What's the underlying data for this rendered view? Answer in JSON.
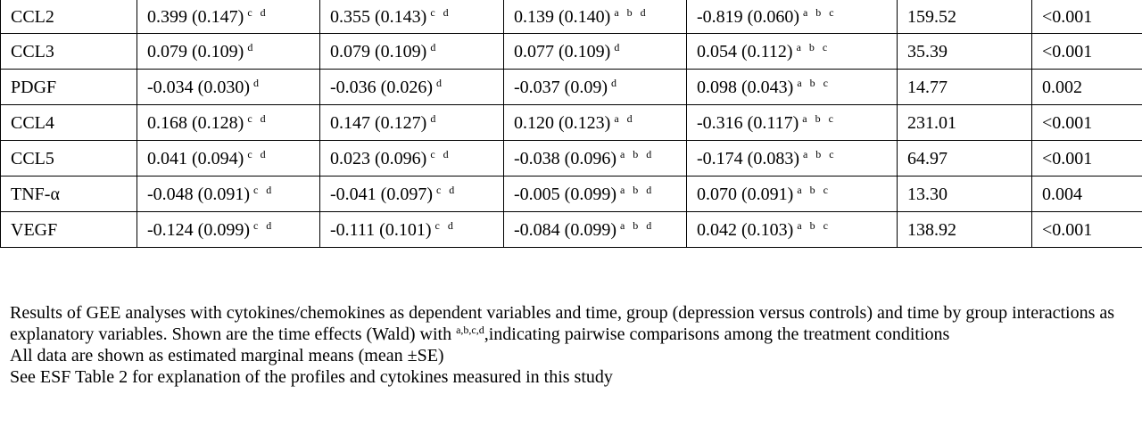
{
  "table": {
    "rows": [
      {
        "name": "CCL2",
        "cells": [
          {
            "value": "0.399 (0.147)",
            "sup": "c d"
          },
          {
            "value": "0.355 (0.143)",
            "sup": "c d"
          },
          {
            "value": "0.139 (0.140)",
            "sup": "a b d"
          },
          {
            "value": "-0.819 (0.060)",
            "sup": "a b c"
          }
        ],
        "wald": "159.52",
        "p": "<0.001"
      },
      {
        "name": "CCL3",
        "cells": [
          {
            "value": "0.079 (0.109)",
            "sup": "d"
          },
          {
            "value": "0.079 (0.109)",
            "sup": "d"
          },
          {
            "value": "0.077 (0.109)",
            "sup": "d"
          },
          {
            "value": "0.054 (0.112)",
            "sup": "a b c"
          }
        ],
        "wald": "35.39",
        "p": "<0.001"
      },
      {
        "name": "PDGF",
        "cells": [
          {
            "value": "-0.034 (0.030)",
            "sup": "d"
          },
          {
            "value": "-0.036 (0.026)",
            "sup": "d"
          },
          {
            "value": "-0.037 (0.09)",
            "sup": "d"
          },
          {
            "value": "0.098 (0.043)",
            "sup": "a b c"
          }
        ],
        "wald": "14.77",
        "p": "0.002"
      },
      {
        "name": "CCL4",
        "cells": [
          {
            "value": "0.168 (0.128)",
            "sup": "c d"
          },
          {
            "value": "0.147 (0.127)",
            "sup": "d"
          },
          {
            "value": "0.120 (0.123)",
            "sup": "a d"
          },
          {
            "value": "-0.316 (0.117)",
            "sup": "a b c"
          }
        ],
        "wald": "231.01",
        "p": "<0.001"
      },
      {
        "name": "CCL5",
        "cells": [
          {
            "value": "0.041 (0.094)",
            "sup": "c d"
          },
          {
            "value": "0.023 (0.096)",
            "sup": "c d"
          },
          {
            "value": "-0.038 (0.096)",
            "sup": "a b d"
          },
          {
            "value": "-0.174 (0.083)",
            "sup": "a b c"
          }
        ],
        "wald": "64.97",
        "p": "<0.001"
      },
      {
        "name": "TNF-α",
        "cells": [
          {
            "value": "-0.048 (0.091)",
            "sup": "c d"
          },
          {
            "value": "-0.041 (0.097)",
            "sup": "c d"
          },
          {
            "value": "-0.005 (0.099)",
            "sup": "a b d"
          },
          {
            "value": "0.070 (0.091)",
            "sup": "a b c"
          }
        ],
        "wald": "13.30",
        "p": "0.004"
      },
      {
        "name": "VEGF",
        "cells": [
          {
            "value": "-0.124 (0.099)",
            "sup": "c d"
          },
          {
            "value": "-0.111 (0.101)",
            "sup": "c d"
          },
          {
            "value": "-0.084 (0.099)",
            "sup": "a b d"
          },
          {
            "value": "0.042 (0.103)",
            "sup": "a b c"
          }
        ],
        "wald": "138.92",
        "p": "<0.001"
      }
    ]
  },
  "notes": {
    "line1_before": "Results of GEE analyses with cytokines/chemokines as dependent variables and time, group (depression versus controls) and time by group interactions as explanatory variables. Shown are the time effects (Wald) with ",
    "line1_marks": "a,b,c,d",
    "line1_after": ",indicating pairwise comparisons among the treatment conditions",
    "line2": "All data are shown as estimated marginal means (mean ±SE)",
    "line3": "See ESF Table 2 for explanation of the profiles and cytokines measured in this study"
  }
}
